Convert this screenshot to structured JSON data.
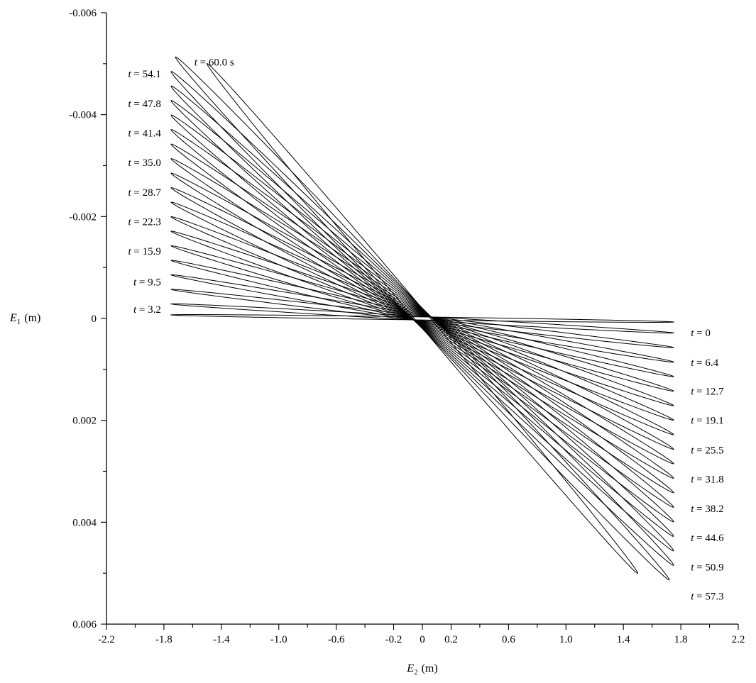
{
  "figure": {
    "background": "#ffffff",
    "line_color": "#000000"
  },
  "chart_data": {
    "type": "line",
    "title": "",
    "description": "Family of 20 highly flattened ellipses (error/orbit ellipses) rotating about the origin at successive times t from 0 to 60 s; each ellipse spans E2 from -a to +a with tips at E1 = -tip_e1 (left) and +tip_e1 (right); note the E1 axis is inverted (negative up).",
    "curve_model": "E2(th)=a*cos(th); E1(th)=tip_e1*cos(th)+b*sin(th)",
    "xlabel": {
      "var": "E",
      "sub": "2",
      "unit": "(m)"
    },
    "ylabel": {
      "var": "E",
      "sub": "1",
      "unit": "(m)"
    },
    "xlim": [
      -2.2,
      2.2
    ],
    "ylim": [
      -0.006,
      0.006
    ],
    "y_axis_inverted": true,
    "grid": false,
    "x_minor_step": 0.2,
    "y_minor_step": 0.001,
    "x_ticks": [
      {
        "v": -2.2,
        "label": "-2.2"
      },
      {
        "v": -1.8,
        "label": "-1.8"
      },
      {
        "v": -1.4,
        "label": "-1.4"
      },
      {
        "v": -1.0,
        "label": "-1.0"
      },
      {
        "v": -0.6,
        "label": "-0.6"
      },
      {
        "v": -0.2,
        "label": "-0.2"
      },
      {
        "v": 0.0,
        "label": "0"
      },
      {
        "v": 0.2,
        "label": "0.2"
      },
      {
        "v": 0.6,
        "label": "0.6"
      },
      {
        "v": 1.0,
        "label": "1.0"
      },
      {
        "v": 1.4,
        "label": "1.4"
      },
      {
        "v": 1.8,
        "label": "1.8"
      },
      {
        "v": 2.2,
        "label": "2.2"
      }
    ],
    "y_ticks": [
      {
        "v": -0.006,
        "label": "-0.006"
      },
      {
        "v": -0.004,
        "label": "-0.004"
      },
      {
        "v": -0.002,
        "label": "-0.002"
      },
      {
        "v": 0.0,
        "label": "0"
      },
      {
        "v": 0.002,
        "label": "0.002"
      },
      {
        "v": 0.004,
        "label": "0.004"
      },
      {
        "v": 0.006,
        "label": "0.006"
      }
    ],
    "ellipses": [
      {
        "t": 0.0,
        "a": 1.75,
        "tip_e1": 7e-05,
        "b": 3e-05
      },
      {
        "t": 3.2,
        "a": 1.75,
        "tip_e1": 0.000285,
        "b": 4e-05
      },
      {
        "t": 6.4,
        "a": 1.75,
        "tip_e1": 0.00057,
        "b": 5e-05
      },
      {
        "t": 9.5,
        "a": 1.75,
        "tip_e1": 0.000855,
        "b": 6e-05
      },
      {
        "t": 12.7,
        "a": 1.75,
        "tip_e1": 0.00114,
        "b": 7e-05
      },
      {
        "t": 15.9,
        "a": 1.75,
        "tip_e1": 0.001425,
        "b": 8e-05
      },
      {
        "t": 19.1,
        "a": 1.75,
        "tip_e1": 0.00171,
        "b": 9e-05
      },
      {
        "t": 22.3,
        "a": 1.75,
        "tip_e1": 0.001995,
        "b": 0.0001
      },
      {
        "t": 25.5,
        "a": 1.75,
        "tip_e1": 0.00228,
        "b": 0.00011
      },
      {
        "t": 28.7,
        "a": 1.75,
        "tip_e1": 0.002565,
        "b": 0.00012
      },
      {
        "t": 31.8,
        "a": 1.75,
        "tip_e1": 0.00285,
        "b": 0.00013
      },
      {
        "t": 35.0,
        "a": 1.75,
        "tip_e1": 0.003135,
        "b": 0.00014
      },
      {
        "t": 38.2,
        "a": 1.75,
        "tip_e1": 0.00342,
        "b": 0.00015
      },
      {
        "t": 41.4,
        "a": 1.75,
        "tip_e1": 0.003705,
        "b": 0.00016
      },
      {
        "t": 44.6,
        "a": 1.75,
        "tip_e1": 0.00399,
        "b": 0.00017
      },
      {
        "t": 47.8,
        "a": 1.75,
        "tip_e1": 0.004275,
        "b": 0.00018
      },
      {
        "t": 50.9,
        "a": 1.75,
        "tip_e1": 0.00456,
        "b": 0.00019
      },
      {
        "t": 54.1,
        "a": 1.75,
        "tip_e1": 0.004845,
        "b": 0.0002
      },
      {
        "t": 57.3,
        "a": 1.72,
        "tip_e1": 0.00513,
        "b": 0.0002
      },
      {
        "t": 60.0,
        "a": 1.5,
        "tip_e1": 0.005,
        "b": 0.00019
      }
    ],
    "time_labels": [
      {
        "text": "t = 60.0 s",
        "x": -1.45,
        "e1": -0.00503,
        "anchor": "middle"
      },
      {
        "text": "t = 54.1",
        "x": -1.82,
        "e1": -0.0048,
        "anchor": "end"
      },
      {
        "text": "t = 47.8",
        "x": -1.82,
        "e1": -0.00422,
        "anchor": "end"
      },
      {
        "text": "t = 41.4",
        "x": -1.82,
        "e1": -0.00364,
        "anchor": "end"
      },
      {
        "text": "t = 35.0",
        "x": -1.82,
        "e1": -0.00306,
        "anchor": "end"
      },
      {
        "text": "t = 28.7",
        "x": -1.82,
        "e1": -0.00248,
        "anchor": "end"
      },
      {
        "text": "t = 22.3",
        "x": -1.82,
        "e1": -0.0019,
        "anchor": "end"
      },
      {
        "text": "t = 15.9",
        "x": -1.82,
        "e1": -0.00132,
        "anchor": "end"
      },
      {
        "text": "t = 9.5",
        "x": -1.82,
        "e1": -0.00072,
        "anchor": "end"
      },
      {
        "text": "t = 3.2",
        "x": -1.82,
        "e1": -0.00018,
        "anchor": "end"
      },
      {
        "text": "t = 0",
        "x": 1.87,
        "e1": 0.00028,
        "anchor": "start"
      },
      {
        "text": "t = 6.4",
        "x": 1.87,
        "e1": 0.00086,
        "anchor": "start"
      },
      {
        "text": "t = 12.7",
        "x": 1.87,
        "e1": 0.00143,
        "anchor": "start"
      },
      {
        "text": "t = 19.1",
        "x": 1.87,
        "e1": 0.002,
        "anchor": "start"
      },
      {
        "text": "t = 25.5",
        "x": 1.87,
        "e1": 0.00258,
        "anchor": "start"
      },
      {
        "text": "t = 31.8",
        "x": 1.87,
        "e1": 0.00315,
        "anchor": "start"
      },
      {
        "text": "t = 38.2",
        "x": 1.87,
        "e1": 0.00373,
        "anchor": "start"
      },
      {
        "text": "t = 44.6",
        "x": 1.87,
        "e1": 0.0043,
        "anchor": "start"
      },
      {
        "text": "t = 50.9",
        "x": 1.87,
        "e1": 0.00488,
        "anchor": "start"
      },
      {
        "text": "t = 57.3",
        "x": 1.87,
        "e1": 0.00545,
        "anchor": "start"
      }
    ]
  }
}
